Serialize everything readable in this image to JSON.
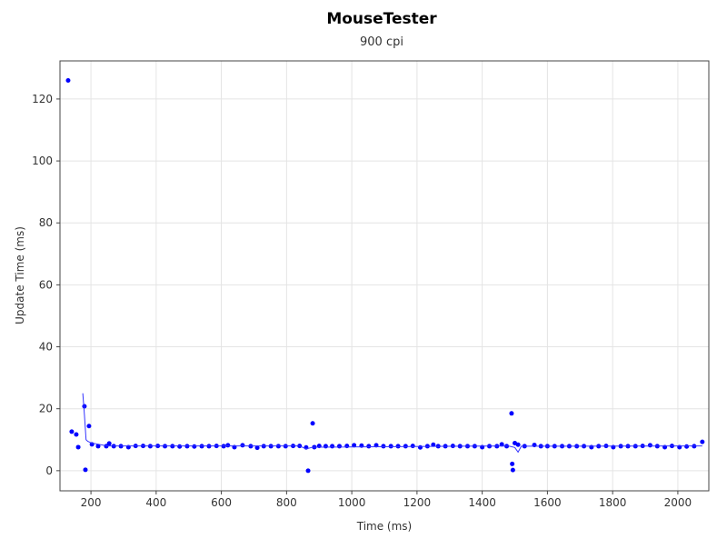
{
  "chart_data": {
    "type": "scatter",
    "title": "MouseTester",
    "subtitle": "900 cpi",
    "x_label": "Time (ms)",
    "y_label": "Update Time (ms)",
    "xlim": [
      105,
      2095
    ],
    "ylim": [
      -6.5,
      132.3
    ],
    "xticks": [
      200,
      400,
      600,
      800,
      1000,
      1200,
      1400,
      1600,
      1800,
      2000
    ],
    "yticks": [
      0,
      20,
      40,
      60,
      80,
      100,
      120
    ],
    "grid": true,
    "series": [
      {
        "type": "scatter",
        "color": "#0000ff",
        "x": [
          130,
          141,
          155,
          161,
          180,
          183,
          194,
          203,
          222,
          247,
          256,
          270,
          292,
          315,
          337,
          360,
          382,
          405,
          427,
          450,
          472,
          495,
          517,
          540,
          562,
          585,
          607,
          620,
          640,
          665,
          690,
          710,
          730,
          752,
          775,
          797,
          820,
          840,
          860,
          866,
          880,
          885,
          900,
          920,
          940,
          962,
          985,
          1007,
          1030,
          1052,
          1075,
          1097,
          1120,
          1142,
          1165,
          1187,
          1210,
          1232,
          1250,
          1265,
          1287,
          1310,
          1332,
          1355,
          1377,
          1400,
          1422,
          1445,
          1460,
          1475,
          1490,
          1492,
          1494,
          1500,
          1510,
          1530,
          1560,
          1580,
          1600,
          1622,
          1645,
          1667,
          1690,
          1712,
          1735,
          1757,
          1780,
          1802,
          1825,
          1847,
          1870,
          1892,
          1915,
          1937,
          1960,
          1982,
          2005,
          2027,
          2050,
          2075
        ],
        "values": [
          126,
          12.6,
          11.7,
          7.6,
          20.8,
          0.3,
          14.4,
          8.5,
          7.9,
          7.9,
          8.8,
          7.9,
          7.9,
          7.6,
          8,
          8,
          7.9,
          8,
          7.9,
          7.9,
          7.8,
          7.9,
          7.8,
          7.9,
          7.9,
          8,
          7.9,
          8.2,
          7.6,
          8.2,
          7.9,
          7.4,
          7.9,
          7.9,
          7.9,
          7.9,
          8,
          8,
          7.5,
          0,
          15.3,
          7.6,
          8,
          7.9,
          7.9,
          7.9,
          8,
          8.2,
          8.1,
          7.9,
          8.2,
          7.9,
          7.9,
          7.9,
          7.9,
          8,
          7.5,
          7.9,
          8.4,
          7.9,
          7.9,
          8,
          7.9,
          7.9,
          7.9,
          7.6,
          7.9,
          7.9,
          8.5,
          7.9,
          18.5,
          2.2,
          0.2,
          8.9,
          8.4,
          7.9,
          8.3,
          7.9,
          7.9,
          7.9,
          7.9,
          7.9,
          7.9,
          7.9,
          7.6,
          7.9,
          8,
          7.6,
          7.9,
          7.9,
          7.9,
          8,
          8.2,
          7.9,
          7.6,
          8,
          7.6,
          7.8,
          7.9,
          9.3
        ]
      },
      {
        "type": "line",
        "color": "#3333ff",
        "x": [
          175,
          180,
          185,
          190,
          200,
          250,
          840,
          850,
          860,
          880,
          1480,
          1500,
          1510,
          1520,
          2075
        ],
        "values": [
          25,
          18,
          10,
          9.5,
          9,
          8,
          8,
          7.5,
          7,
          7.6,
          8,
          7.5,
          6,
          7.9,
          8
        ]
      }
    ]
  }
}
